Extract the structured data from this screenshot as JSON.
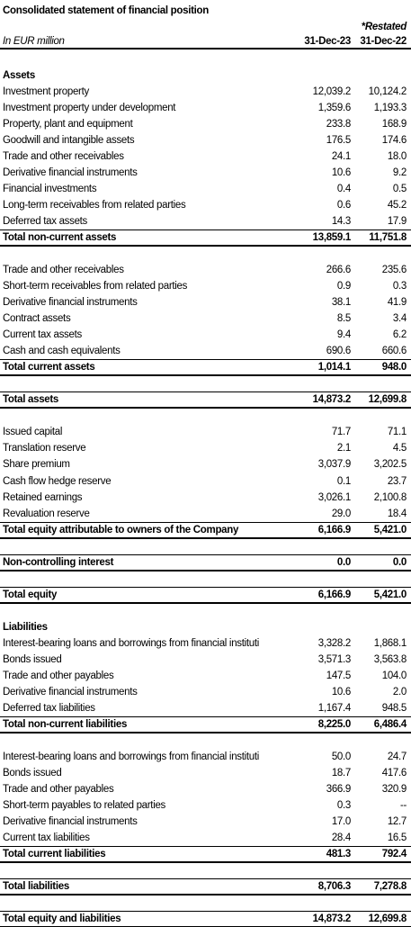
{
  "header": {
    "title": "Consolidated statement of financial position",
    "note": "*Restated",
    "unit": "In EUR million",
    "columns": [
      "31-Dec-23",
      "31-Dec-22"
    ]
  },
  "sections": [
    {
      "heading": "Assets",
      "rows": [
        [
          "Investment property",
          "12,039.2",
          "10,124.2"
        ],
        [
          "Investment property under development",
          "1,359.6",
          "1,193.3"
        ],
        [
          "Property, plant and equipment",
          "233.8",
          "168.9"
        ],
        [
          "Goodwill and intangible assets",
          "176.5",
          "174.6"
        ],
        [
          "Trade and other receivables",
          "24.1",
          "18.0"
        ],
        [
          "Derivative financial instruments",
          "10.6",
          "9.2"
        ],
        [
          "Financial investments",
          "0.4",
          "0.5"
        ],
        [
          "Long-term receivables from related parties",
          "0.6",
          "45.2"
        ],
        [
          "Deferred tax assets",
          "14.3",
          "17.9"
        ]
      ],
      "total": [
        "Total non-current assets",
        "13,859.1",
        "11,751.8"
      ]
    },
    {
      "rows": [
        [
          "Trade and other receivables",
          "266.6",
          "235.6"
        ],
        [
          "Short-term receivables from related parties",
          "0.9",
          "0.3"
        ],
        [
          "Derivative financial instruments",
          "38.1",
          "41.9"
        ],
        [
          "Contract assets",
          "8.5",
          "3.4"
        ],
        [
          "Current tax assets",
          "9.4",
          "6.2"
        ],
        [
          "Cash and cash equivalents",
          "690.6",
          "660.6"
        ]
      ],
      "total": [
        "Total current assets",
        "1,014.1",
        "948.0"
      ]
    },
    {
      "total": [
        "Total assets",
        "14,873.2",
        "12,699.8"
      ]
    },
    {
      "rows": [
        [
          "Issued capital",
          "71.7",
          "71.1"
        ],
        [
          "Translation reserve",
          "2.1",
          "4.5"
        ],
        [
          "Share premium",
          "3,037.9",
          "3,202.5"
        ],
        [
          "Cash flow hedge reserve",
          "0.1",
          "23.7"
        ],
        [
          "Retained earnings",
          "3,026.1",
          "2,100.8"
        ],
        [
          "Revaluation reserve",
          "29.0",
          "18.4"
        ]
      ],
      "total": [
        "Total equity attributable to owners of the Company",
        "6,166.9",
        "5,421.0"
      ]
    },
    {
      "total": [
        "Non-controlling interest",
        "0.0",
        "0.0"
      ]
    },
    {
      "total": [
        "Total equity",
        "6,166.9",
        "5,421.0"
      ]
    },
    {
      "heading": "Liabilities",
      "rows": [
        [
          "Interest-bearing loans and borrowings from financial instituti",
          "3,328.2",
          "1,868.1"
        ],
        [
          "Bonds issued",
          "3,571.3",
          "3,563.8"
        ],
        [
          "Trade and other payables",
          "147.5",
          "104.0"
        ],
        [
          "Derivative financial instruments",
          "10.6",
          "2.0"
        ],
        [
          "Deferred tax liabilities",
          "1,167.4",
          "948.5"
        ]
      ],
      "total": [
        "Total non-current liabilities",
        "8,225.0",
        "6,486.4"
      ]
    },
    {
      "rows": [
        [
          "Interest-bearing loans and borrowings from financial instituti",
          "50.0",
          "24.7"
        ],
        [
          "Bonds issued",
          "18.7",
          "417.6"
        ],
        [
          "Trade and other payables",
          "366.9",
          "320.9"
        ],
        [
          "Short-term payables to related parties",
          "0.3",
          "--"
        ],
        [
          "Derivative financial instruments",
          "17.0",
          "12.7"
        ],
        [
          "Current tax liabilities",
          "28.4",
          "16.5"
        ]
      ],
      "total": [
        "Total current liabilities",
        "481.3",
        "792.4"
      ]
    },
    {
      "total": [
        "Total liabilities",
        "8,706.3",
        "7,278.8"
      ]
    },
    {
      "total": [
        "Total equity and liabilities",
        "14,873.2",
        "12,699.8"
      ]
    }
  ]
}
